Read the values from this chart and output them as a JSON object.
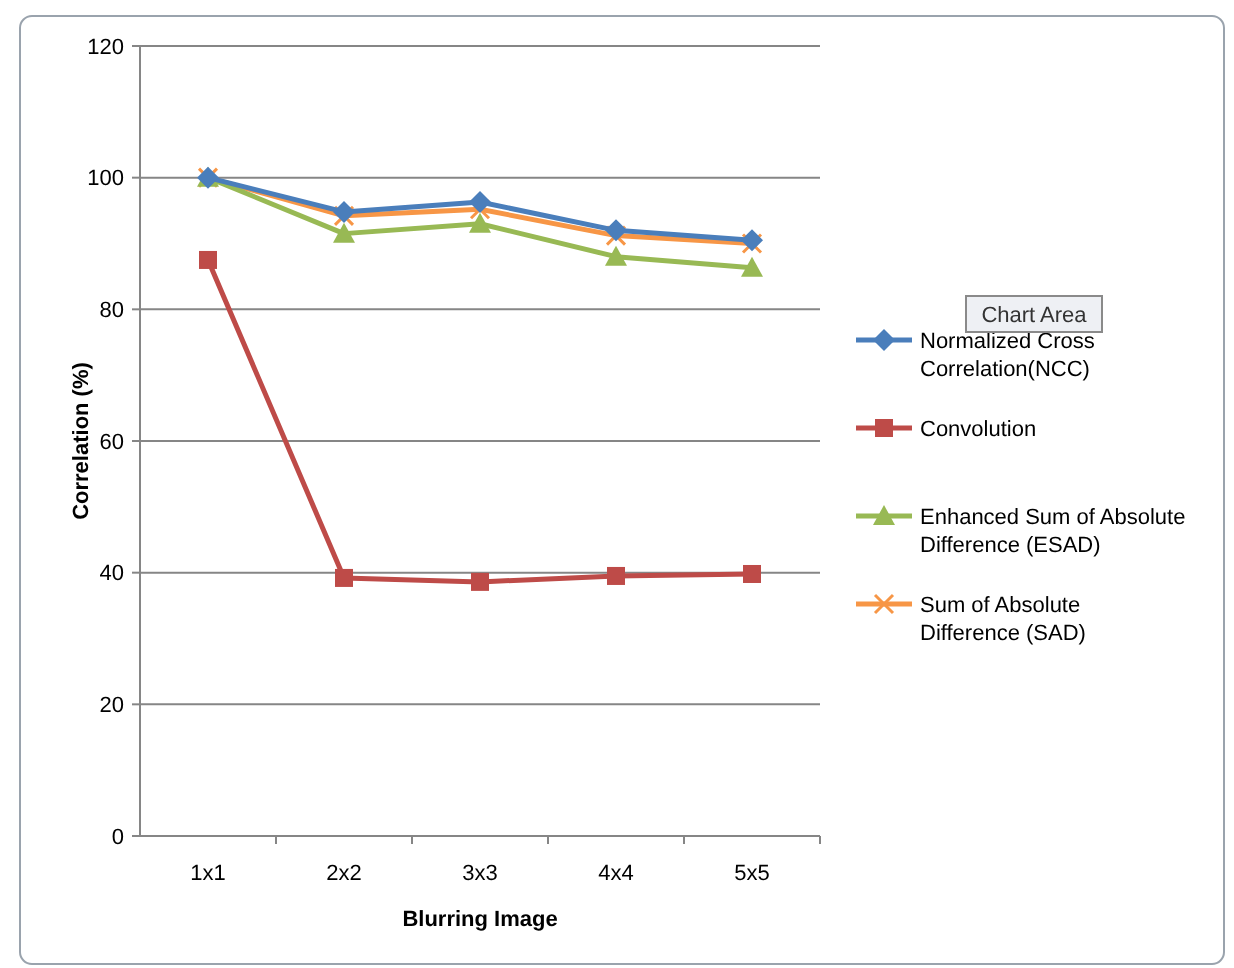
{
  "chart_data": {
    "type": "line",
    "xlabel": "Blurring Image",
    "ylabel": "Correlation (%)",
    "categories": [
      "1x1",
      "2x2",
      "3x3",
      "4x4",
      "5x5"
    ],
    "series": [
      {
        "name": "Normalized Cross Correlation(NCC)",
        "color": "#4a7ebb",
        "marker": "diamond",
        "values": [
          100,
          94.8,
          96.3,
          92,
          90.5
        ]
      },
      {
        "name": "Convolution",
        "color": "#be4b48",
        "marker": "square",
        "values": [
          87.5,
          39.2,
          38.6,
          39.5,
          39.8
        ]
      },
      {
        "name": "Enhanced Sum of Absolute Difference (ESAD)",
        "color": "#98b954",
        "marker": "triangle",
        "values": [
          100,
          91.5,
          93,
          88,
          86.3
        ]
      },
      {
        "name": "Sum of Absolute Difference (SAD)",
        "color": "#f79646",
        "marker": "cross",
        "values": [
          100,
          94.2,
          95.2,
          91.2,
          90
        ]
      }
    ],
    "ylim": [
      0,
      120
    ],
    "yticks": [
      0,
      20,
      40,
      60,
      80,
      100,
      120
    ],
    "grid": "y",
    "legend": "right",
    "line_style": "solid",
    "annotations": [
      "Chart Area"
    ]
  }
}
